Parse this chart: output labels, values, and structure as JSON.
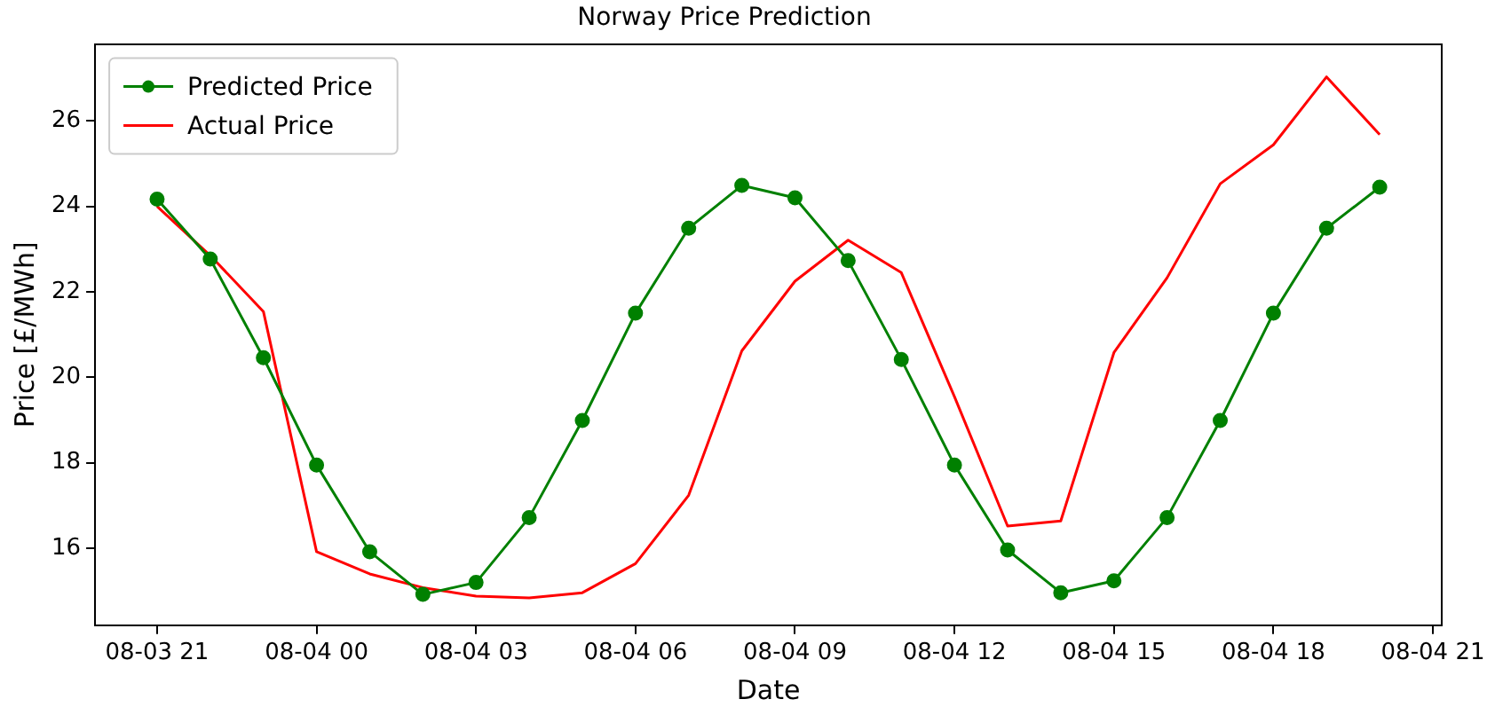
{
  "chart_data": {
    "type": "line",
    "title": "Norway Price Prediction",
    "xlabel": "Date",
    "ylabel": "Price [£/MWh]",
    "x": [
      "--08-03T21:00",
      "--08-03T22:00",
      "--08-03T23:00",
      "--08-04T00:00",
      "--08-04T01:00",
      "--08-04T02:00",
      "--08-04T03:00",
      "--08-04T04:00",
      "--08-04T05:00",
      "--08-04T06:00",
      "--08-04T07:00",
      "--08-04T08:00",
      "--08-04T09:00",
      "--08-04T10:00",
      "--08-04T11:00",
      "--08-04T12:00",
      "--08-04T13:00",
      "--08-04T14:00",
      "--08-04T15:00",
      "--08-04T16:00",
      "--08-04T17:00",
      "--08-04T18:00",
      "--08-04T19:00",
      "--08-04T20:00"
    ],
    "series": [
      {
        "name": "Predicted Price",
        "color": "#008000",
        "marker": "circle",
        "values": [
          24.17,
          22.77,
          20.46,
          17.95,
          15.92,
          14.92,
          15.2,
          16.72,
          18.99,
          21.5,
          23.49,
          24.49,
          24.2,
          22.73,
          20.42,
          17.95,
          15.96,
          14.96,
          15.24,
          16.72,
          18.99,
          21.5,
          23.49,
          24.45
        ]
      },
      {
        "name": "Actual Price",
        "color": "#ff0000",
        "marker": "none",
        "values": [
          24.0,
          22.85,
          21.54,
          15.92,
          15.4,
          15.08,
          14.88,
          14.84,
          14.96,
          15.64,
          17.24,
          20.62,
          22.25,
          23.21,
          22.45,
          19.55,
          16.52,
          16.64,
          20.58,
          22.33,
          24.53,
          25.44,
          27.03,
          25.68
        ]
      }
    ],
    "xlim": [
      "--08-03T19:50",
      "--08-04T21:10"
    ],
    "xticks": [
      {
        "value": "--08-03T21:00",
        "label": "08-03 21"
      },
      {
        "value": "--08-04T00:00",
        "label": "08-04 00"
      },
      {
        "value": "--08-04T03:00",
        "label": "08-04 03"
      },
      {
        "value": "--08-04T06:00",
        "label": "08-04 06"
      },
      {
        "value": "--08-04T09:00",
        "label": "08-04 09"
      },
      {
        "value": "--08-04T12:00",
        "label": "08-04 12"
      },
      {
        "value": "--08-04T15:00",
        "label": "08-04 15"
      },
      {
        "value": "--08-04T18:00",
        "label": "08-04 18"
      },
      {
        "value": "--08-04T21:00",
        "label": "08-04 21"
      }
    ],
    "ylim": [
      14.2,
      27.8
    ],
    "yticks": [
      16,
      18,
      20,
      22,
      24,
      26
    ],
    "grid": false,
    "legend": "top left",
    "line_style": "solid"
  }
}
